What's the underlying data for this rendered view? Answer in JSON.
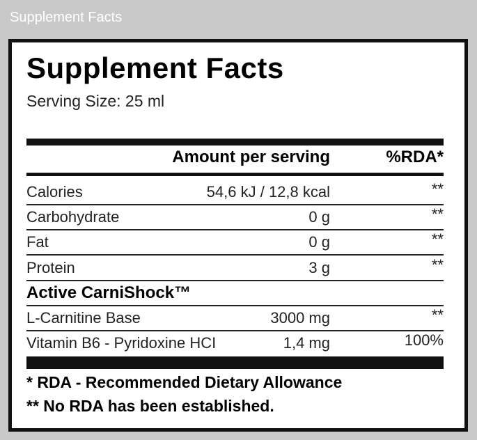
{
  "header": {
    "title": "Supplement Facts"
  },
  "label": {
    "title": "Supplement Facts",
    "serving_size": "Serving Size: 25 ml"
  },
  "table": {
    "columns": [
      "Amount per serving",
      "%RDA*"
    ],
    "rows": [
      [
        "Calories",
        "54,6 kJ / 12,8 kcal",
        "**"
      ],
      [
        "Carbohydrate",
        "0 g",
        "**"
      ],
      [
        "Fat",
        "0 g",
        "**"
      ],
      [
        "Protein",
        "3 g",
        "**"
      ],
      [
        "Active CarniShock™"
      ],
      [
        "L-Carnitine Base",
        "3000 mg",
        "**"
      ],
      [
        "Vitamin B6 - Pyridoxine HCI",
        "1,4 mg",
        "100%"
      ]
    ]
  },
  "footnotes": [
    "* RDA - Recommended Dietary Allowance",
    "** No RDA has been established."
  ]
}
